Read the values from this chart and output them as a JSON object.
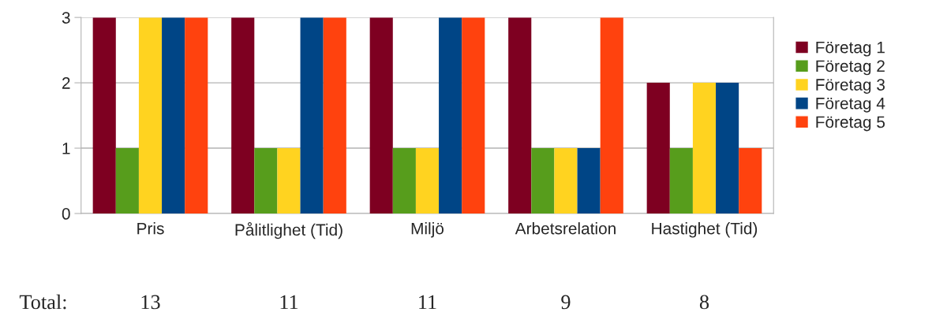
{
  "chart_data": {
    "type": "bar",
    "categories": [
      "Pris",
      "Pålitlighet (Tid)",
      "Miljö",
      "Arbetsrelation",
      "Hastighet (Tid)"
    ],
    "series": [
      {
        "name": "Företag 1",
        "color": "#7e0021",
        "values": [
          3,
          3,
          3,
          3,
          2
        ]
      },
      {
        "name": "Företag 2",
        "color": "#579d1c",
        "values": [
          1,
          1,
          1,
          1,
          1
        ]
      },
      {
        "name": "Företag 3",
        "color": "#ffd320",
        "values": [
          3,
          1,
          1,
          1,
          2
        ]
      },
      {
        "name": "Företag 4",
        "color": "#004586",
        "values": [
          3,
          3,
          3,
          1,
          2
        ]
      },
      {
        "name": "Företag 5",
        "color": "#ff420e",
        "values": [
          3,
          3,
          3,
          3,
          1
        ]
      }
    ],
    "ylim": [
      0,
      3
    ],
    "yticks": [
      0,
      1,
      2,
      3
    ],
    "grid": "y",
    "legend": "right",
    "annotations": [
      "Total:",
      "13",
      "11",
      "11",
      "9",
      "8"
    ]
  }
}
